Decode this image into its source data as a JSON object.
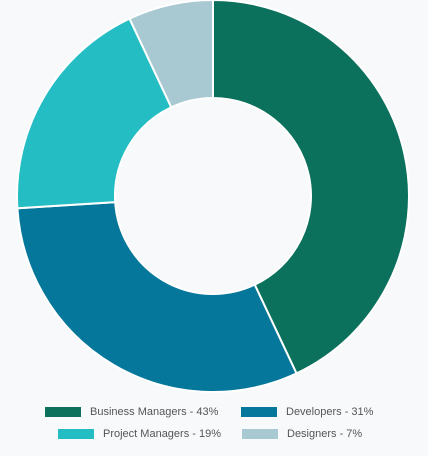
{
  "chart_data": {
    "type": "pie",
    "donut": true,
    "title": "",
    "series": [
      {
        "name": "Business Managers - 43%",
        "value": 43,
        "color": "#0b715d"
      },
      {
        "name": "Developers - 31%",
        "value": 31,
        "color": "#05779b"
      },
      {
        "name": "Project Managers - 19%",
        "value": 19,
        "color": "#24bdc3"
      },
      {
        "name": "Designers - 7%",
        "value": 7,
        "color": "#a8c8d2"
      }
    ],
    "legend_position": "bottom"
  },
  "legend": {
    "items": [
      {
        "label": "Business Managers - 43%",
        "color": "#0b715d"
      },
      {
        "label": "Developers - 31%",
        "color": "#05779b"
      },
      {
        "label": "Project Managers - 19%",
        "color": "#24bdc3"
      },
      {
        "label": "Designers - 7%",
        "color": "#a8c8d2"
      }
    ]
  }
}
